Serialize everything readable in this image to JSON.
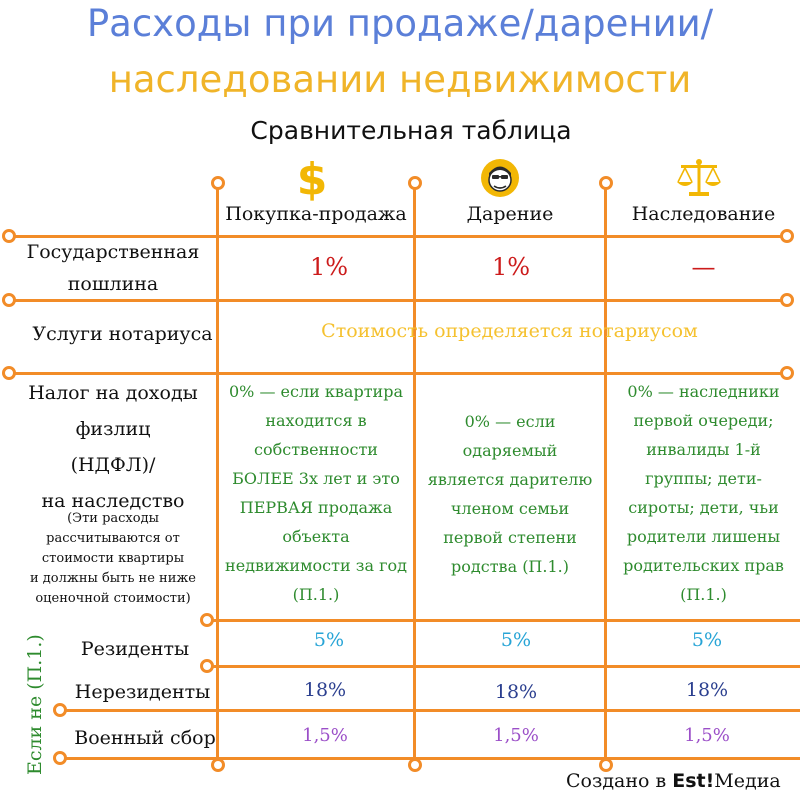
{
  "title_line1": "Расходы при продаже/дарении/",
  "title_line2": "наследовании недвижимости",
  "subtitle": "Сравнительная таблица",
  "columns": {
    "sale": "Покупка-продажа",
    "gift": "Дарение",
    "inheritance": "Наследование"
  },
  "icons": {
    "sale": "dollar-sign-icon",
    "gift": "face-icon",
    "inheritance": "scales-icon"
  },
  "rows": {
    "duty": {
      "label_line1": "Государственная",
      "label_line2": "пошлина",
      "sale": "1%",
      "gift": "1%",
      "inheritance": "—"
    },
    "notary": {
      "label": "Услуги нотариуса",
      "value": "Стоимость определяется нотариусом"
    },
    "tax": {
      "label_line1": "Налог на доходы",
      "label_line2": "физлиц",
      "label_line3": "(НДФЛ)/",
      "label_line4": "на наследство",
      "note_line1": "(Эти расходы",
      "note_line2": "рассчитываются от",
      "note_line3": "стоимости квартиры",
      "note_line4": "и должны быть не ниже",
      "note_line5": "оценочной стоимости)",
      "sale_lines": [
        "0% — если квартира",
        "находится в",
        "собственности",
        "БОЛЕЕ 3х лет и это",
        "ПЕРВАЯ продажа",
        "объекта",
        "недвижимости за год",
        "(П.1.)"
      ],
      "gift_lines": [
        "0% — если",
        "одаряемый",
        "является дарителю",
        "членом семьи",
        "первой степени",
        "родства (П.1.)"
      ],
      "inheritance_lines": [
        "0% — наследники",
        "первой очереди;",
        "инвалиды 1-й",
        "группы; дети-",
        "сироты; дети, чьи",
        "родители лишены",
        "родительских прав",
        "(П.1.)"
      ]
    },
    "residents": {
      "label": "Резиденты",
      "sale": "5%",
      "gift": "5%",
      "inheritance": "5%"
    },
    "nonresidents": {
      "label": "Нерезиденты",
      "sale": "18%",
      "gift": "18%",
      "inheritance": "18%"
    },
    "military": {
      "label": "Военный сбор",
      "sale": "1,5%",
      "gift": "1,5%",
      "inheritance": "1,5%"
    }
  },
  "side_label": "Если не (П.1.)",
  "credit": {
    "prefix": "Создано в ",
    "brand": "Est!",
    "suffix": "Медиа"
  },
  "colors": {
    "title_blue": "#5b7fd8",
    "title_yellow": "#f0b429",
    "grid_orange": "#f28c28",
    "red": "#cc1b1b",
    "green": "#2e8b2e",
    "cyan": "#27a4d6",
    "navy": "#2b3f8f",
    "purple": "#9b4fc8"
  }
}
